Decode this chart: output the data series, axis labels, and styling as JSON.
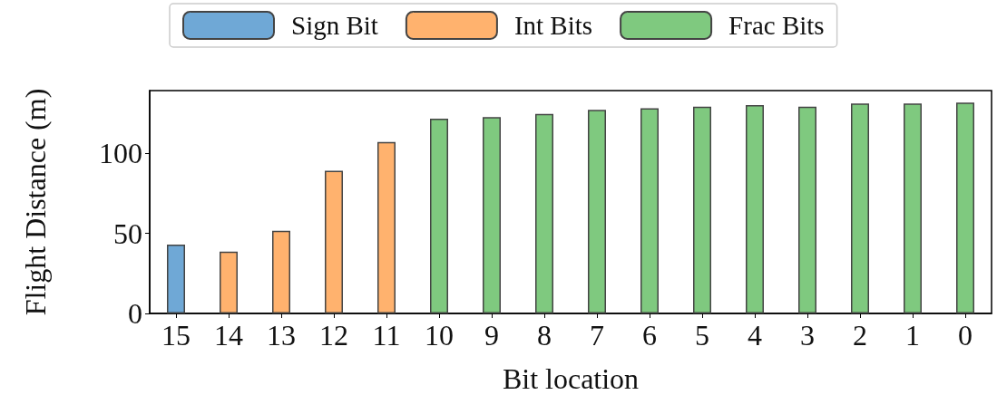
{
  "chart_data": {
    "type": "bar",
    "xlabel": "Bit location",
    "ylabel": "Flight Distance (m)",
    "categories": [
      "15",
      "14",
      "13",
      "12",
      "11",
      "10",
      "9",
      "8",
      "7",
      "6",
      "5",
      "4",
      "3",
      "2",
      "1",
      "0"
    ],
    "series": [
      {
        "name": "Sign Bit",
        "color": "#6fa8d6",
        "values": [
          43,
          null,
          null,
          null,
          null,
          null,
          null,
          null,
          null,
          null,
          null,
          null,
          null,
          null,
          null,
          null
        ]
      },
      {
        "name": "Int Bits",
        "color": "#ffb26e",
        "values": [
          null,
          38.5,
          51.5,
          89,
          107,
          null,
          null,
          null,
          null,
          null,
          null,
          null,
          null,
          null,
          null,
          null
        ]
      },
      {
        "name": "Frac Bits",
        "color": "#7fc97f",
        "values": [
          null,
          null,
          null,
          null,
          null,
          121.5,
          122.5,
          124.5,
          127,
          128,
          129,
          130,
          129,
          131,
          131,
          131.5
        ]
      }
    ],
    "ylim": [
      0,
      139
    ],
    "yticks": [
      0,
      50,
      100
    ],
    "grid": false,
    "legend": "top"
  }
}
